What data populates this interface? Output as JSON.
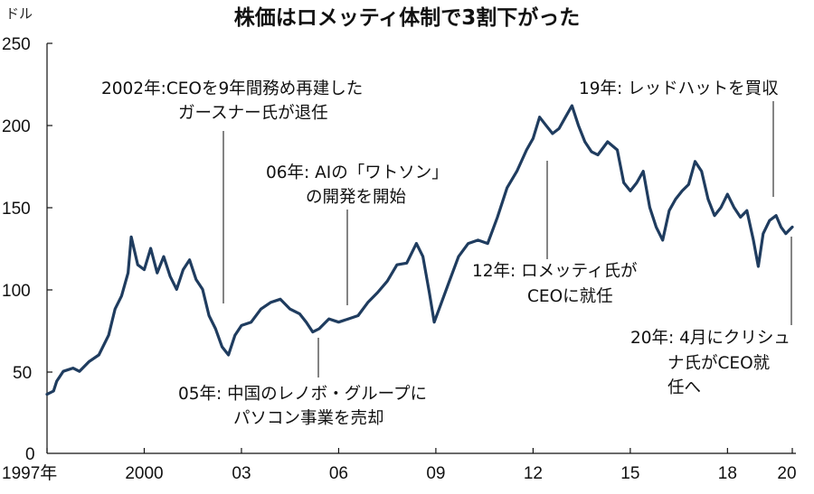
{
  "chart_data": {
    "type": "line",
    "title": "株価はロメッティ体制で3割下がった",
    "ylabel": "ドル",
    "ylim": [
      0,
      250
    ],
    "xlim": [
      1997.0,
      2020.0
    ],
    "y_ticks": [
      "250",
      "200",
      "150",
      "100",
      "50",
      "0"
    ],
    "x_ticks": [
      {
        "x": 1997,
        "label": "1997年"
      },
      {
        "x": 2000,
        "label": "2000"
      },
      {
        "x": 2003,
        "label": "03"
      },
      {
        "x": 2006,
        "label": "06"
      },
      {
        "x": 2009,
        "label": "09"
      },
      {
        "x": 2012,
        "label": "12"
      },
      {
        "x": 2015,
        "label": "15"
      },
      {
        "x": 2018,
        "label": "18"
      },
      {
        "x": 2020,
        "label": "20"
      }
    ],
    "grid": false,
    "series": [
      {
        "values": [
          [
            1997.0,
            36
          ],
          [
            1997.2,
            38
          ],
          [
            1997.3,
            44
          ],
          [
            1997.5,
            50
          ],
          [
            1997.8,
            52
          ],
          [
            1998.0,
            50
          ],
          [
            1998.3,
            56
          ],
          [
            1998.6,
            60
          ],
          [
            1998.9,
            72
          ],
          [
            1999.1,
            88
          ],
          [
            1999.3,
            96
          ],
          [
            1999.5,
            110
          ],
          [
            1999.6,
            132
          ],
          [
            1999.8,
            115
          ],
          [
            2000.0,
            112
          ],
          [
            2000.2,
            125
          ],
          [
            2000.4,
            110
          ],
          [
            2000.6,
            120
          ],
          [
            2000.8,
            108
          ],
          [
            2001.0,
            100
          ],
          [
            2001.2,
            112
          ],
          [
            2001.4,
            118
          ],
          [
            2001.6,
            106
          ],
          [
            2001.8,
            100
          ],
          [
            2002.0,
            84
          ],
          [
            2002.2,
            76
          ],
          [
            2002.4,
            65
          ],
          [
            2002.6,
            60
          ],
          [
            2002.8,
            72
          ],
          [
            2003.0,
            78
          ],
          [
            2003.3,
            80
          ],
          [
            2003.6,
            88
          ],
          [
            2003.9,
            92
          ],
          [
            2004.2,
            94
          ],
          [
            2004.5,
            88
          ],
          [
            2004.8,
            85
          ],
          [
            2005.0,
            80
          ],
          [
            2005.2,
            74
          ],
          [
            2005.4,
            76
          ],
          [
            2005.7,
            82
          ],
          [
            2006.0,
            80
          ],
          [
            2006.3,
            82
          ],
          [
            2006.6,
            84
          ],
          [
            2006.9,
            92
          ],
          [
            2007.2,
            98
          ],
          [
            2007.5,
            105
          ],
          [
            2007.8,
            115
          ],
          [
            2008.1,
            116
          ],
          [
            2008.4,
            128
          ],
          [
            2008.6,
            120
          ],
          [
            2008.8,
            98
          ],
          [
            2008.95,
            80
          ],
          [
            2009.1,
            88
          ],
          [
            2009.4,
            104
          ],
          [
            2009.7,
            120
          ],
          [
            2010.0,
            128
          ],
          [
            2010.3,
            130
          ],
          [
            2010.6,
            128
          ],
          [
            2010.9,
            144
          ],
          [
            2011.2,
            162
          ],
          [
            2011.5,
            172
          ],
          [
            2011.8,
            185
          ],
          [
            2012.0,
            192
          ],
          [
            2012.2,
            205
          ],
          [
            2012.4,
            200
          ],
          [
            2012.6,
            195
          ],
          [
            2012.8,
            198
          ],
          [
            2013.0,
            205
          ],
          [
            2013.2,
            212
          ],
          [
            2013.4,
            200
          ],
          [
            2013.6,
            190
          ],
          [
            2013.8,
            184
          ],
          [
            2014.0,
            182
          ],
          [
            2014.3,
            190
          ],
          [
            2014.6,
            185
          ],
          [
            2014.8,
            165
          ],
          [
            2015.0,
            160
          ],
          [
            2015.2,
            165
          ],
          [
            2015.4,
            172
          ],
          [
            2015.6,
            150
          ],
          [
            2015.8,
            138
          ],
          [
            2016.0,
            130
          ],
          [
            2016.2,
            148
          ],
          [
            2016.4,
            155
          ],
          [
            2016.6,
            160
          ],
          [
            2016.8,
            164
          ],
          [
            2017.0,
            178
          ],
          [
            2017.2,
            172
          ],
          [
            2017.4,
            155
          ],
          [
            2017.6,
            145
          ],
          [
            2017.8,
            150
          ],
          [
            2018.0,
            158
          ],
          [
            2018.2,
            150
          ],
          [
            2018.4,
            144
          ],
          [
            2018.6,
            148
          ],
          [
            2018.8,
            130
          ],
          [
            2018.95,
            114
          ],
          [
            2019.1,
            134
          ],
          [
            2019.3,
            142
          ],
          [
            2019.5,
            145
          ],
          [
            2019.65,
            138
          ],
          [
            2019.8,
            134
          ],
          [
            2019.9,
            136
          ],
          [
            2020.0,
            138
          ]
        ]
      }
    ],
    "annotations": [
      {
        "x": 2002.0,
        "lines": [
          "2002年:CEOを9年間務め再建した",
          "ガースナー氏が退任"
        ]
      },
      {
        "x": 2006.0,
        "lines": [
          "06年: AIの「ワトソン」",
          "の開発を開始"
        ]
      },
      {
        "x": 2005.0,
        "lines": [
          "05年: 中国のレノボ・グループに",
          "パソコン事業を売却"
        ]
      },
      {
        "x": 2012.0,
        "lines": [
          "12年: ロメッティ氏が",
          "CEOに就任"
        ]
      },
      {
        "x": 2019.5,
        "lines": [
          "19年: レッドハットを買収"
        ]
      },
      {
        "x": 2020.0,
        "lines": [
          "20年: 4月にクリシュ",
          "ナ氏がCEO就",
          "任へ"
        ]
      }
    ]
  }
}
